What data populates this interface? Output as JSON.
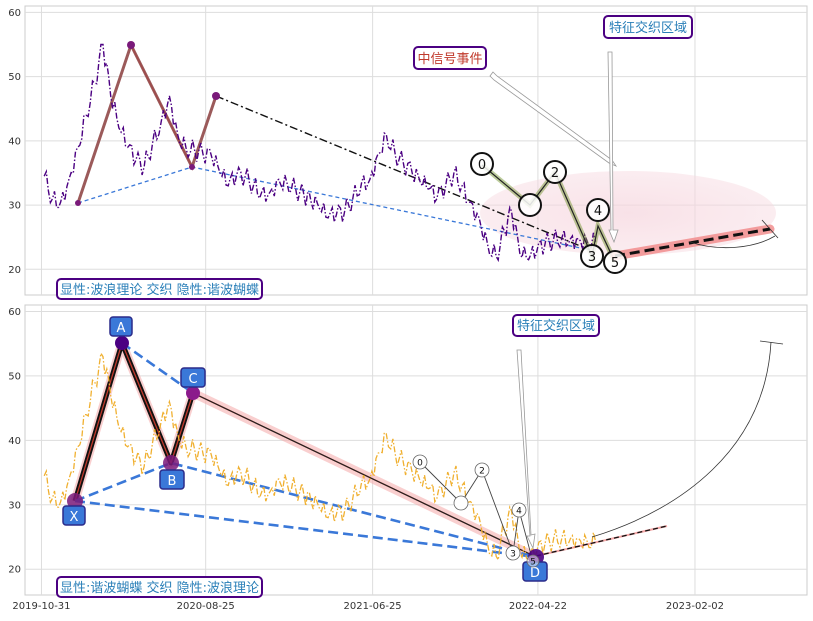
{
  "chart_data": [
    {
      "type": "line",
      "panel": "top",
      "ylim": [
        16,
        61
      ],
      "yticks": [
        20,
        30,
        40,
        50,
        60
      ],
      "xlim": [
        "2019-10-01",
        "2023-08-25"
      ],
      "grid": true,
      "series": [
        {
          "color": "#4b0082",
          "style": "dash-dot",
          "x": [
            "2019-11-05",
            "2019-11-20",
            "2019-12-05",
            "2019-12-20",
            "2020-01-05",
            "2020-01-20",
            "2020-02-05",
            "2020-02-20",
            "2020-03-05",
            "2020-03-20",
            "2020-04-05",
            "2020-04-20",
            "2020-05-05",
            "2020-05-20",
            "2020-06-05",
            "2020-06-20",
            "2020-07-05",
            "2020-07-20",
            "2020-08-05",
            "2020-08-20",
            "2020-09-05",
            "2020-09-20",
            "2020-10-05",
            "2020-10-20",
            "2020-11-05",
            "2020-11-20",
            "2020-12-05",
            "2020-12-20",
            "2021-01-05",
            "2021-01-20",
            "2021-02-05",
            "2021-02-20",
            "2021-03-05",
            "2021-03-20",
            "2021-04-05",
            "2021-04-20",
            "2021-05-05",
            "2021-05-20",
            "2021-06-05",
            "2021-06-20",
            "2021-07-05",
            "2021-07-20",
            "2021-08-05",
            "2021-08-20",
            "2021-09-05",
            "2021-09-20",
            "2021-10-05",
            "2021-10-20",
            "2021-11-05",
            "2021-11-20",
            "2021-12-05",
            "2021-12-20",
            "2022-01-05",
            "2022-01-20",
            "2022-02-05",
            "2022-02-20",
            "2022-03-05",
            "2022-03-20",
            "2022-04-05",
            "2022-04-20",
            "2022-05-05",
            "2022-05-20",
            "2022-06-05",
            "2022-06-20",
            "2022-07-05",
            "2022-07-20",
            "2022-08-05"
          ],
          "y": [
            34.5,
            31,
            30.5,
            34,
            39,
            44,
            49,
            55,
            47,
            42,
            39,
            37,
            36,
            39.5,
            43,
            47,
            41,
            39,
            38.5,
            38,
            37.5,
            35,
            33,
            34.5,
            34.5,
            33,
            32,
            32,
            34,
            33.5,
            32.5,
            31.5,
            30.5,
            29.5,
            28,
            28.5,
            29,
            31,
            33.5,
            34,
            38,
            41,
            38,
            36.5,
            35,
            33.5,
            32.5,
            31,
            33,
            35,
            33,
            30.5,
            28,
            24,
            22,
            26,
            29,
            22.5,
            21.5,
            22.8,
            24,
            24.5,
            25,
            24.7,
            24.8,
            24.5,
            24.3
          ]
        }
      ]
    },
    {
      "type": "line",
      "panel": "bottom",
      "ylim": [
        16,
        61
      ],
      "yticks": [
        20,
        30,
        40,
        50,
        60
      ],
      "xlim": [
        "2019-10-01",
        "2023-08-25"
      ],
      "xticks": [
        "2019-10-31",
        "2020-08-25",
        "2021-06-25",
        "2022-04-22",
        "2023-02-02"
      ],
      "grid": true,
      "series": [
        {
          "color": "#f0b030",
          "style": "dash-dot",
          "x": [
            "2019-11-05",
            "2019-11-20",
            "2019-12-05",
            "2019-12-20",
            "2020-01-05",
            "2020-01-20",
            "2020-02-05",
            "2020-02-20",
            "2020-03-05",
            "2020-03-20",
            "2020-04-05",
            "2020-04-20",
            "2020-05-05",
            "2020-05-20",
            "2020-06-05",
            "2020-06-20",
            "2020-07-05",
            "2020-07-20",
            "2020-08-05",
            "2020-08-20",
            "2020-09-05",
            "2020-09-20",
            "2020-10-05",
            "2020-10-20",
            "2020-11-05",
            "2020-11-20",
            "2020-12-05",
            "2020-12-20",
            "2021-01-05",
            "2021-01-20",
            "2021-02-05",
            "2021-02-20",
            "2021-03-05",
            "2021-03-20",
            "2021-04-05",
            "2021-04-20",
            "2021-05-05",
            "2021-05-20",
            "2021-06-05",
            "2021-06-20",
            "2021-07-05",
            "2021-07-20",
            "2021-08-05",
            "2021-08-20",
            "2021-09-05",
            "2021-09-20",
            "2021-10-05",
            "2021-10-20",
            "2021-11-05",
            "2021-11-20",
            "2021-12-05",
            "2021-12-20",
            "2022-01-05",
            "2022-01-20",
            "2022-02-05",
            "2022-02-20",
            "2022-03-05",
            "2022-03-20",
            "2022-04-05",
            "2022-04-20",
            "2022-05-05",
            "2022-05-20",
            "2022-06-05",
            "2022-06-20",
            "2022-07-05",
            "2022-07-20",
            "2022-08-05"
          ],
          "y": [
            34.5,
            31,
            30.5,
            34,
            39,
            44,
            49,
            53,
            47,
            42,
            39,
            37,
            36,
            39.5,
            43,
            46,
            41,
            39,
            38.5,
            38,
            37.5,
            35,
            33,
            34.5,
            34.5,
            33,
            32,
            32,
            34,
            33.5,
            32.5,
            31.5,
            30.5,
            29.5,
            28,
            28.5,
            29,
            31,
            33.5,
            34,
            38,
            41,
            38,
            36.5,
            35,
            33.5,
            32.5,
            31,
            33,
            35,
            33,
            30.5,
            28,
            24,
            22,
            26,
            29,
            22.5,
            21.5,
            22.8,
            24,
            24.5,
            25,
            24.7,
            24.8,
            24.5,
            24.3
          ]
        }
      ]
    }
  ],
  "labels": {
    "top_event": "中信号事件",
    "top_zone": "特征交织区域",
    "top_caption": "显性:波浪理论 交织 隐性:谐波蝴蝶",
    "bottom_zone": "特征交织区域",
    "bottom_caption": "显性:谐波蝴蝶 交织 隐性:波浪理论",
    "wave_top": [
      "0",
      "2",
      "3",
      "4",
      "5"
    ],
    "wave_bottom": [
      "0",
      "2",
      "3",
      "4",
      "5"
    ],
    "harmonic": [
      "X",
      "A",
      "B",
      "C",
      "D"
    ]
  },
  "colors": {
    "purple": "#4b0082",
    "gold": "#f0b030",
    "blue": "#3a78d8",
    "label_text": "#2a7fb8",
    "event_text": "#c0392b"
  }
}
